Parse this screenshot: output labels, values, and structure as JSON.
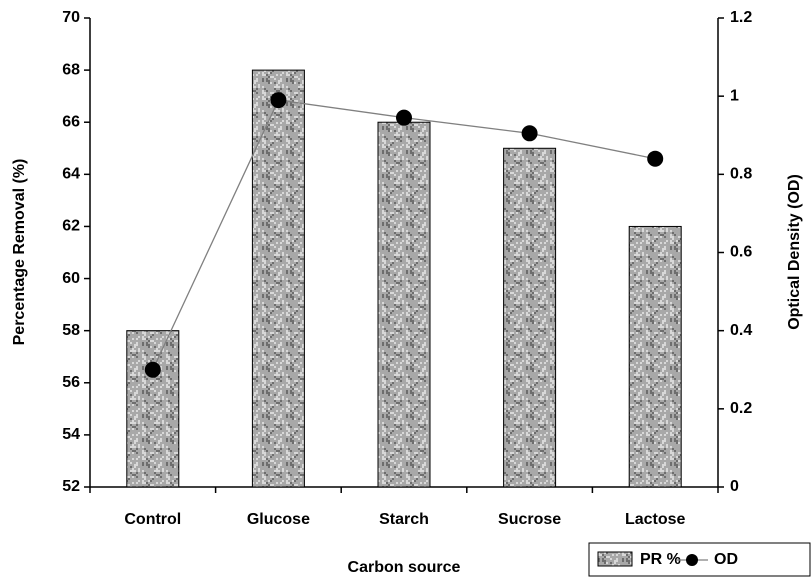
{
  "chart_data": {
    "type": "bar_line",
    "categories": [
      "Control",
      "Glucose",
      "Starch",
      "Sucrose",
      "Lactose"
    ],
    "series": [
      {
        "name": "PR %",
        "type": "bar",
        "axis": "y",
        "color": "#a8a8a8",
        "values": [
          58,
          68,
          66,
          65,
          62
        ]
      },
      {
        "name": "OD",
        "type": "line",
        "axis": "y2",
        "color": "#808080",
        "marker_color": "#000000",
        "values": [
          0.3,
          0.99,
          0.945,
          0.905,
          0.84
        ]
      }
    ],
    "xlabel": "Carbon source",
    "ylabel": "Percentage Removal (%)",
    "y2label": "Optical Density (OD)",
    "ylim": [
      52,
      70
    ],
    "yticks": [
      52,
      54,
      56,
      58,
      60,
      62,
      64,
      66,
      68,
      70
    ],
    "y2lim": [
      0,
      1.2
    ],
    "y2ticks": [
      0,
      0.2,
      0.4,
      0.6,
      0.8,
      1,
      1.2
    ],
    "legend": "bottom-right",
    "grid": false
  }
}
